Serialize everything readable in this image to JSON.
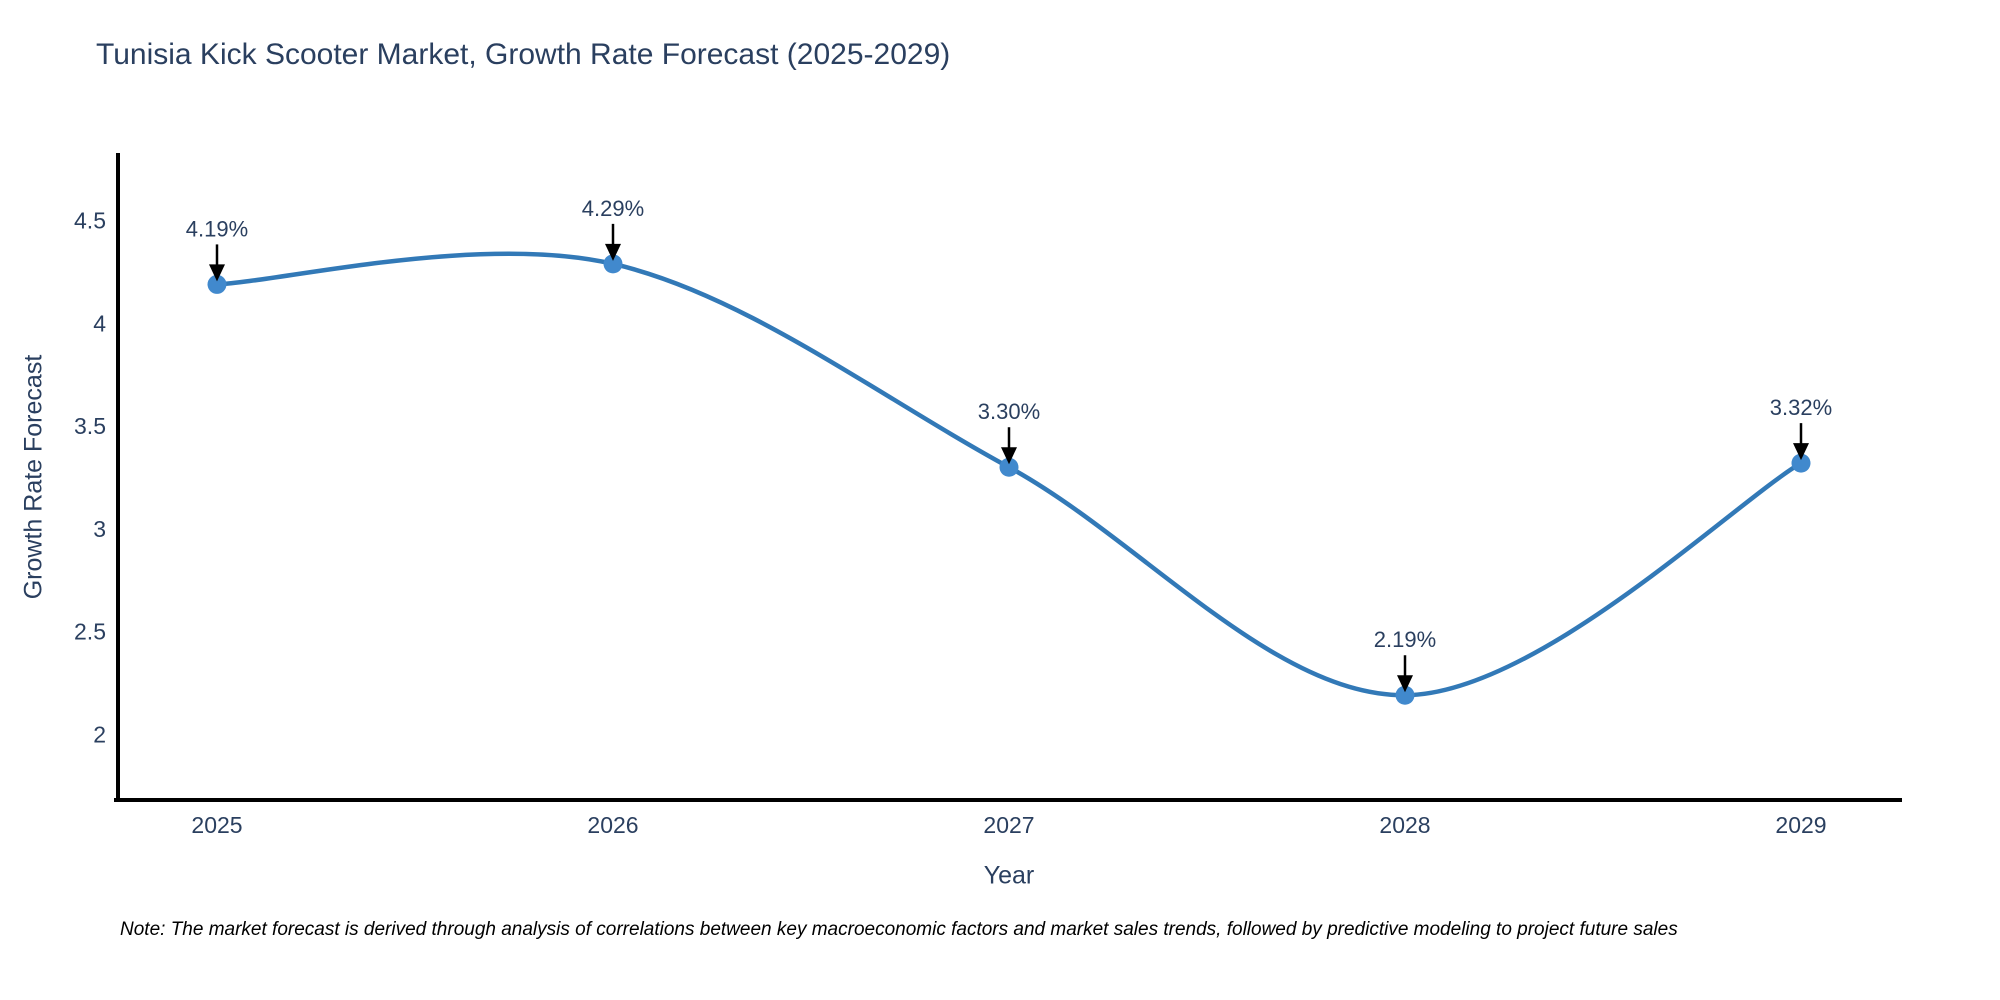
{
  "note": "Note: The market forecast is derived through analysis of correlations between key macroeconomic factors and market sales trends, followed by predictive modeling to project future sales",
  "colors": {
    "line": "#3279b7",
    "marker": "#4189cd",
    "text": "#2a3f5f",
    "axis": "#000000",
    "arrow": "#000000"
  },
  "chart_data": {
    "type": "line",
    "title": "Tunisia Kick Scooter Market, Growth Rate Forecast (2025-2029)",
    "xlabel": "Year",
    "ylabel": "Growth Rate Forecast",
    "categories": [
      2025,
      2026,
      2027,
      2028,
      2029
    ],
    "category_labels": [
      "2025",
      "2026",
      "2027",
      "2028",
      "2029"
    ],
    "values": [
      4.19,
      4.29,
      3.3,
      2.19,
      3.32
    ],
    "point_labels": [
      "4.19%",
      "4.29%",
      "3.30%",
      "2.19%",
      "3.32%"
    ],
    "yticks": [
      4.5,
      4,
      3.5,
      3,
      2.5,
      2
    ],
    "ytick_labels": [
      "4.5",
      "4",
      "3.5",
      "3",
      "2.5",
      "2"
    ],
    "xlim": [
      2024.75,
      2029.25
    ],
    "ylim": [
      1.68,
      4.82
    ],
    "grid": false,
    "legend": false,
    "line_shape": "spline",
    "annotations_arrow": "down"
  }
}
